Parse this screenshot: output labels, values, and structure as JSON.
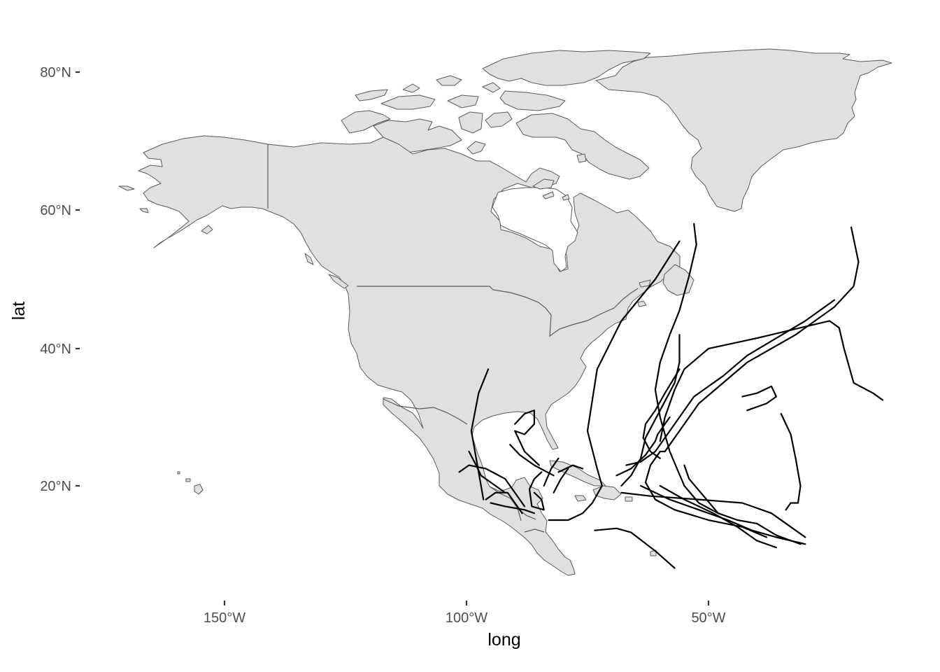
{
  "map": {
    "xlabel": "long",
    "ylabel": "lat",
    "x_ticks": [
      "150°W",
      "100°W",
      "50°W"
    ],
    "y_ticks": [
      "80°N",
      "60°N",
      "40°N",
      "20°N"
    ],
    "land_color": "#e0e0e0",
    "land_outline_color": "#5a5a5a",
    "track_color": "#000000",
    "background": "#ffffff"
  },
  "chart_data": {
    "type": "map-tracks",
    "xlabel": "long",
    "ylabel": "lat",
    "xlim": [
      -180,
      -10
    ],
    "ylim": [
      5,
      85
    ],
    "x_ticks": [
      -150,
      -100,
      -50
    ],
    "y_ticks": [
      80,
      60,
      40,
      20
    ],
    "tracks": [
      [
        [
          -95.5,
          37.0
        ],
        [
          -97.5,
          33.5
        ],
        [
          -99,
          28
        ],
        [
          -97.5,
          22
        ],
        [
          -97,
          20
        ],
        [
          -96.5,
          18
        ]
      ],
      [
        [
          -99.5,
          25
        ],
        [
          -98,
          23
        ],
        [
          -97,
          21.5
        ],
        [
          -94,
          20
        ],
        [
          -92,
          19
        ]
      ],
      [
        [
          -101.5,
          22
        ],
        [
          -99.5,
          23
        ],
        [
          -96,
          22.5
        ],
        [
          -92,
          21
        ],
        [
          -88,
          17
        ]
      ],
      [
        [
          -96,
          18
        ],
        [
          -94,
          19
        ],
        [
          -91.5,
          19
        ],
        [
          -90,
          17.5
        ],
        [
          -88.5,
          16
        ]
      ],
      [
        [
          -95,
          17.5
        ],
        [
          -92,
          17
        ],
        [
          -88,
          16.5
        ],
        [
          -86,
          16
        ]
      ],
      [
        [
          -91,
          26
        ],
        [
          -89,
          24.5
        ],
        [
          -86,
          23
        ],
        [
          -82,
          21.5
        ]
      ],
      [
        [
          -90,
          29
        ],
        [
          -88,
          30.5
        ],
        [
          -86,
          31
        ],
        [
          -86,
          29
        ],
        [
          -88,
          27.5
        ],
        [
          -90,
          28
        ],
        [
          -88,
          25
        ],
        [
          -85,
          23
        ]
      ],
      [
        [
          -84.5,
          22
        ],
        [
          -86,
          21
        ],
        [
          -87,
          19.5
        ],
        [
          -86.5,
          17
        ],
        [
          -84,
          16.5
        ],
        [
          -84.5,
          18
        ],
        [
          -86,
          19
        ]
      ],
      [
        [
          -82,
          19
        ],
        [
          -80.5,
          21
        ],
        [
          -79,
          22.5
        ]
      ],
      [
        [
          -84,
          20
        ],
        [
          -82.5,
          22.5
        ],
        [
          -81,
          24
        ]
      ],
      [
        [
          -81,
          22
        ],
        [
          -78,
          23
        ],
        [
          -76,
          22.5
        ]
      ],
      [
        [
          -83,
          15
        ],
        [
          -79,
          15
        ],
        [
          -76,
          16
        ],
        [
          -74,
          17.5
        ],
        [
          -72,
          20
        ],
        [
          -73,
          22.5
        ],
        [
          -75,
          28
        ],
        [
          -73,
          37
        ],
        [
          -68,
          44
        ],
        [
          -61,
          50
        ],
        [
          -56,
          55.5
        ]
      ],
      [
        [
          -73.5,
          13.5
        ],
        [
          -69,
          13.8
        ],
        [
          -66,
          13.2
        ],
        [
          -61,
          10.5
        ],
        [
          -57,
          8
        ]
      ],
      [
        [
          -69,
          21.5
        ],
        [
          -66,
          22.5
        ],
        [
          -63,
          24.5
        ],
        [
          -61,
          26.5
        ],
        [
          -60.5,
          27.5
        ],
        [
          -60,
          28
        ],
        [
          -59,
          29
        ],
        [
          -58,
          30
        ]
      ],
      [
        [
          -56,
          42
        ],
        [
          -56,
          38
        ],
        [
          -57,
          35
        ],
        [
          -60,
          31
        ],
        [
          -63,
          27
        ],
        [
          -64,
          24
        ],
        [
          -66,
          21.5
        ],
        [
          -68,
          20
        ]
      ],
      [
        [
          -60,
          24
        ],
        [
          -62,
          25
        ],
        [
          -63.5,
          27
        ],
        [
          -63,
          29
        ],
        [
          -61,
          31
        ],
        [
          -59,
          33.5
        ],
        [
          -56,
          37
        ]
      ],
      [
        [
          -67,
          23
        ],
        [
          -64,
          23.5
        ],
        [
          -61,
          25
        ],
        [
          -57,
          29
        ],
        [
          -53,
          33
        ],
        [
          -47,
          36
        ],
        [
          -42,
          39
        ],
        [
          -30,
          44
        ],
        [
          -24,
          47
        ]
      ],
      [
        [
          -53,
          58
        ],
        [
          -52.5,
          55
        ],
        [
          -54,
          50.5
        ],
        [
          -56,
          45.5
        ],
        [
          -58,
          42
        ],
        [
          -60,
          38
        ],
        [
          -61,
          34
        ],
        [
          -60,
          30
        ],
        [
          -58,
          25
        ],
        [
          -55,
          20
        ],
        [
          -52,
          17.5
        ],
        [
          -48,
          16
        ]
      ],
      [
        [
          -60,
          25
        ],
        [
          -62,
          23
        ],
        [
          -63,
          20.5
        ],
        [
          -61,
          18
        ],
        [
          -57,
          16.5
        ],
        [
          -50,
          15
        ],
        [
          -43,
          14
        ],
        [
          -38,
          12.5
        ]
      ],
      [
        [
          -43,
          33
        ],
        [
          -40,
          33.5
        ],
        [
          -37,
          34.5
        ],
        [
          -36,
          33
        ],
        [
          -38,
          32
        ],
        [
          -42,
          31
        ]
      ],
      [
        [
          -35,
          30.5
        ],
        [
          -33,
          27.5
        ],
        [
          -32,
          24
        ],
        [
          -31,
          20
        ],
        [
          -31.5,
          17.5
        ],
        [
          -33,
          17.5
        ],
        [
          -34,
          16.5
        ]
      ],
      [
        [
          -55,
          23
        ],
        [
          -54,
          21
        ],
        [
          -51,
          18.5
        ],
        [
          -48,
          16
        ],
        [
          -44,
          15
        ],
        [
          -40,
          14.5
        ],
        [
          -36,
          12.8
        ],
        [
          -31,
          11.5
        ]
      ],
      [
        [
          -68,
          19
        ],
        [
          -62,
          18.5
        ],
        [
          -52,
          18
        ],
        [
          -43,
          17.5
        ],
        [
          -37,
          16
        ],
        [
          -32,
          13.5
        ],
        [
          -30,
          12.5
        ]
      ],
      [
        [
          -64,
          20
        ],
        [
          -58,
          18
        ],
        [
          -52,
          16.5
        ],
        [
          -46,
          15
        ],
        [
          -41,
          13.5
        ],
        [
          -36,
          12.5
        ],
        [
          -30,
          11.5
        ]
      ],
      [
        [
          -60,
          20
        ],
        [
          -55,
          18
        ],
        [
          -49,
          16
        ],
        [
          -44,
          14
        ],
        [
          -40,
          12
        ],
        [
          -36,
          11
        ]
      ],
      [
        [
          -20.5,
          57.5
        ],
        [
          -19,
          52.5
        ],
        [
          -20,
          49
        ],
        [
          -24,
          46
        ],
        [
          -32,
          42
        ],
        [
          -42,
          38
        ],
        [
          -52,
          32
        ],
        [
          -57,
          27
        ],
        [
          -59,
          25
        ],
        [
          -60,
          25
        ]
      ],
      [
        [
          -14,
          32.5
        ],
        [
          -16,
          33.5
        ],
        [
          -20,
          35
        ],
        [
          -22,
          40
        ],
        [
          -23,
          43
        ],
        [
          -25,
          44
        ],
        [
          -40,
          41.5
        ],
        [
          -50,
          40
        ],
        [
          -55,
          37
        ],
        [
          -57,
          34
        ],
        [
          -59,
          30
        ],
        [
          -60,
          26.5
        ]
      ]
    ]
  }
}
